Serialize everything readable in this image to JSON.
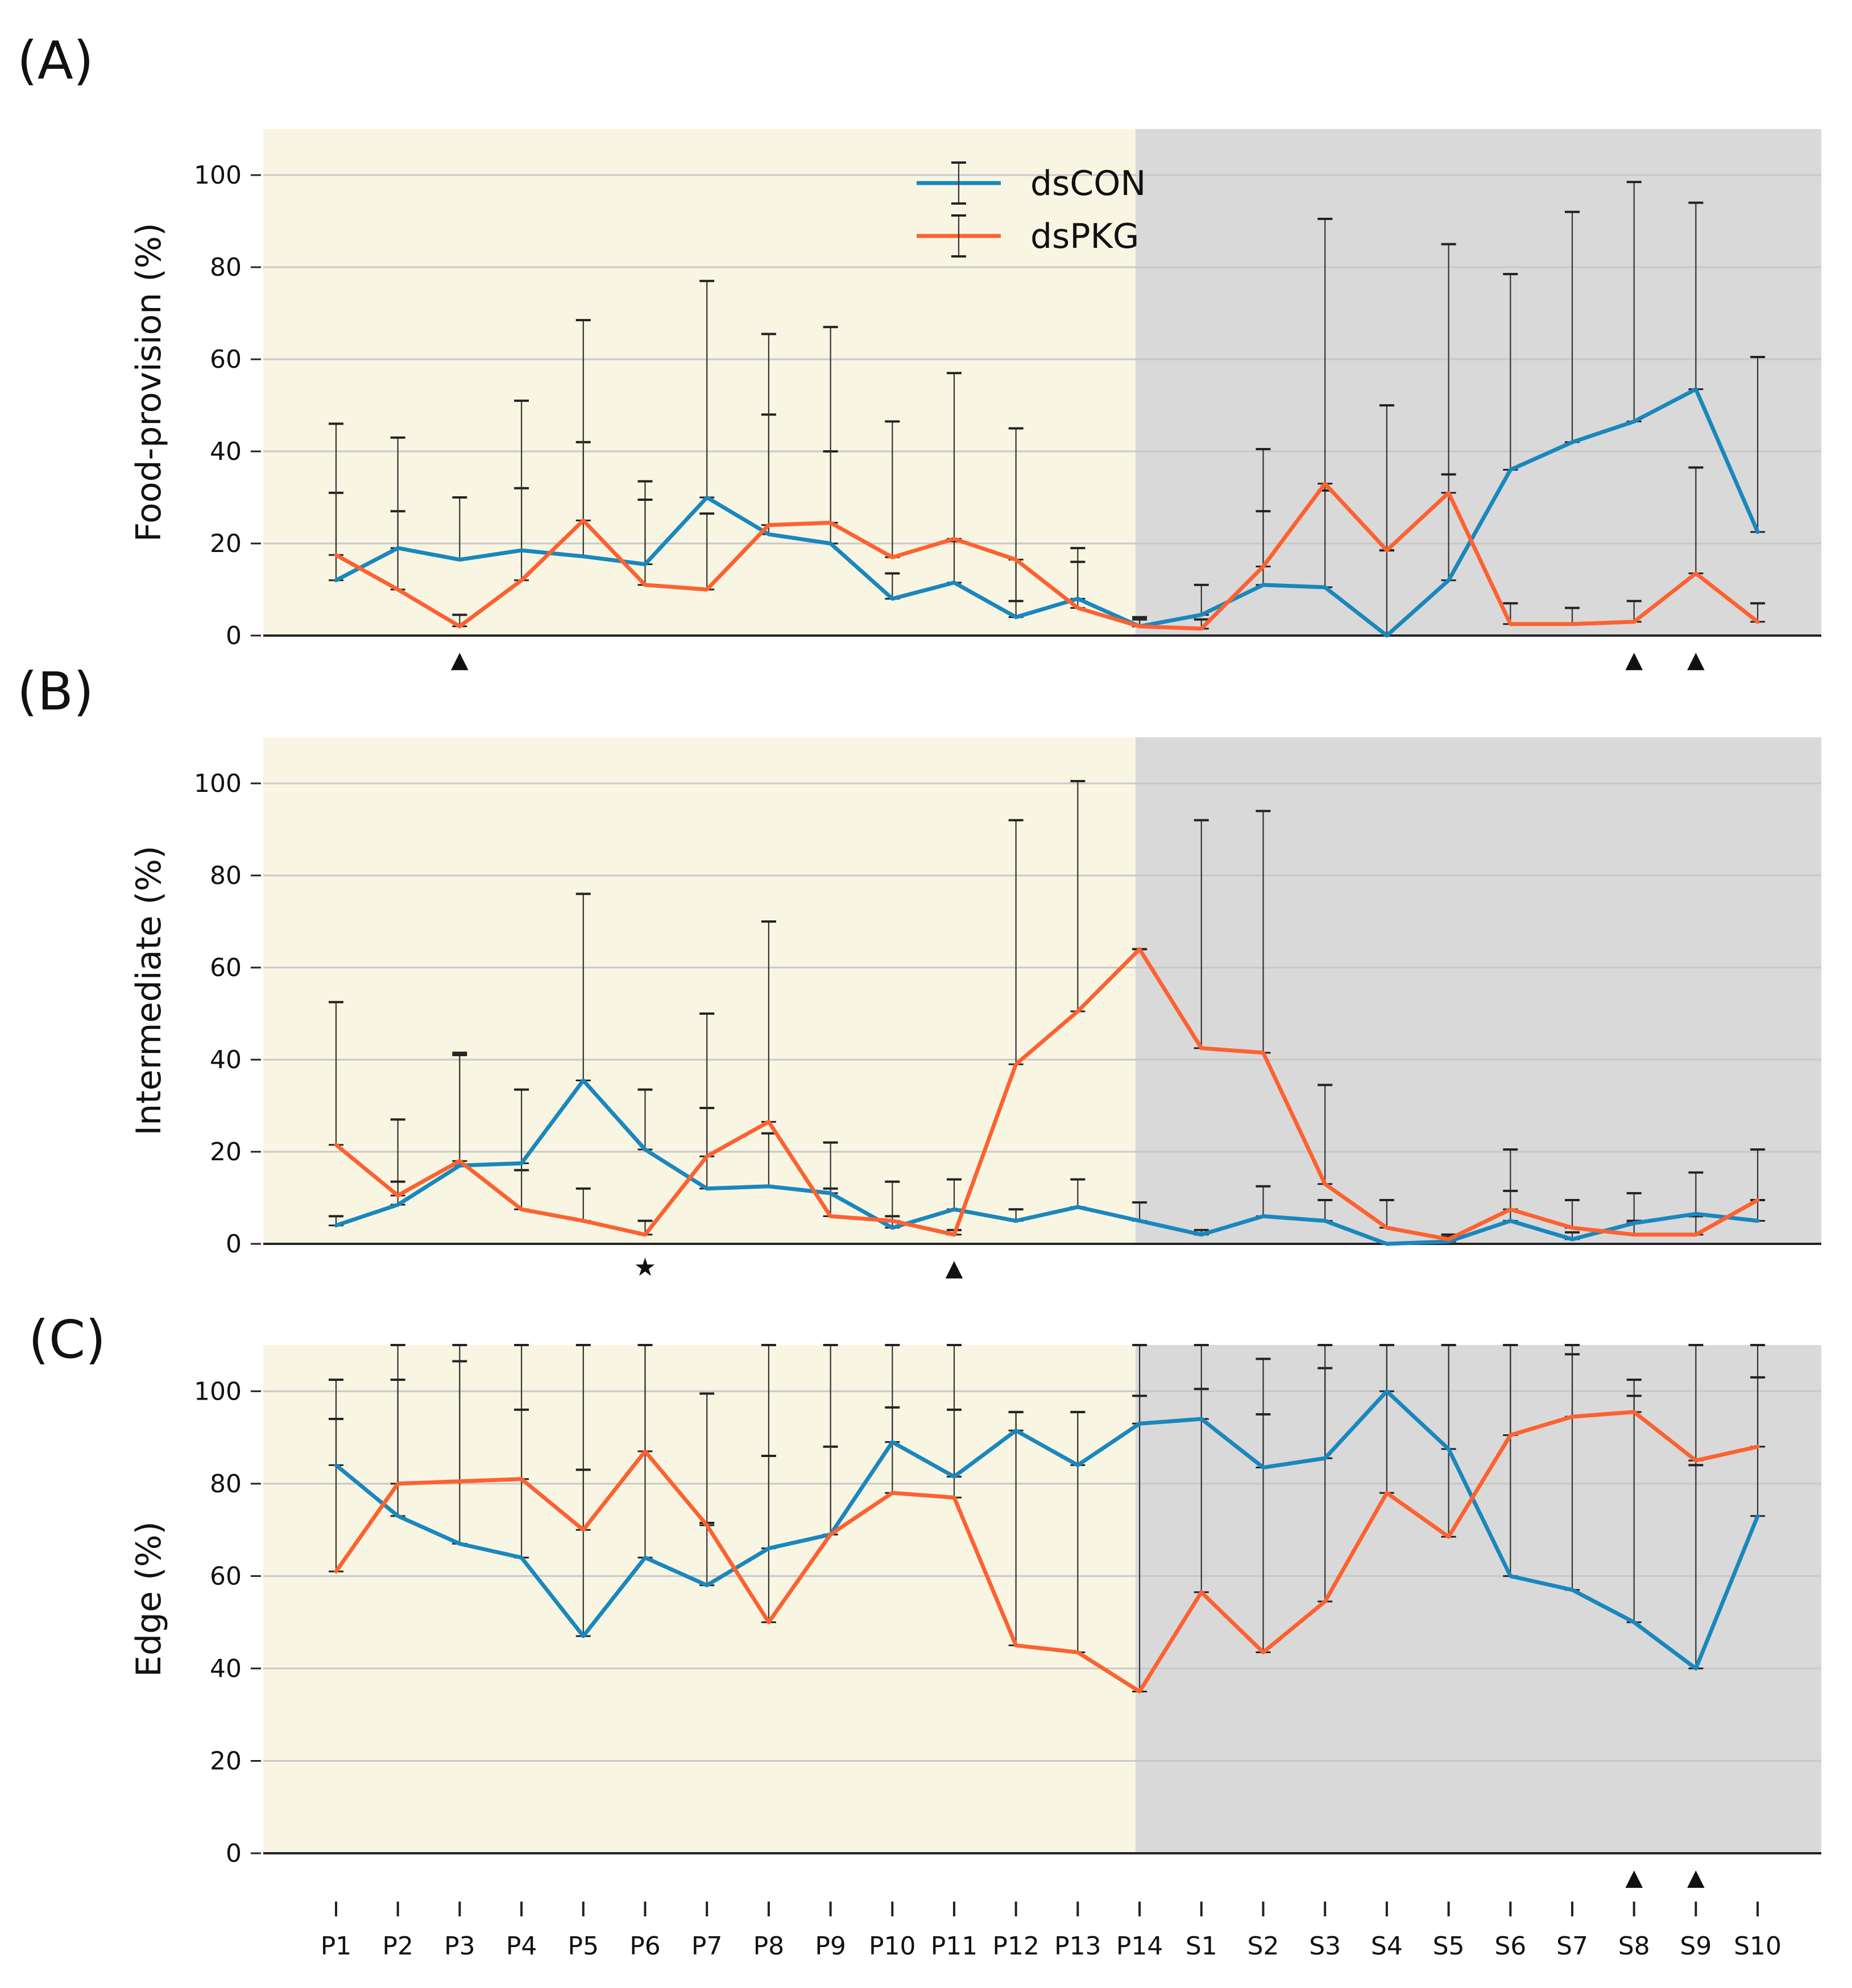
{
  "chart_data": {
    "type": "line",
    "colors": {
      "dsCON": "#1a87bd",
      "dsPKG": "#fc6231",
      "pre_bg": "#f8f6e3",
      "post_bg": "#d9d9d9",
      "grid": "#c8c8c8"
    },
    "categories": [
      "P1",
      "P2",
      "P3",
      "P4",
      "P5",
      "P6",
      "P7",
      "P8",
      "P9",
      "P10",
      "P11",
      "P12",
      "P13",
      "P14",
      "S1",
      "S2",
      "S3",
      "S4",
      "S5",
      "S6",
      "S7",
      "S8",
      "S9",
      "S10"
    ],
    "shade_split_after": "P14",
    "legend": {
      "position": "upper-center",
      "entries": [
        "dsCON",
        "dsPKG"
      ]
    },
    "panels": [
      {
        "label": "(A)",
        "ylabel": "Food-provision (%)",
        "ylim": [
          0,
          110
        ],
        "yticks": [
          0,
          20,
          40,
          60,
          80,
          100
        ],
        "yticklabels": [
          "0",
          "20",
          "40",
          "60",
          "80",
          "100"
        ],
        "show_xticks": false,
        "series": [
          {
            "name": "dsCON",
            "values": [
              12,
              19,
              16.5,
              18.5,
              17.2,
              15.5,
              30,
              22,
              20,
              8,
              11.5,
              4,
              8,
              2,
              4.5,
              11,
              10.5,
              0,
              12,
              36,
              42,
              46.5,
              53.5,
              22.5
            ],
            "err_upper": [
              31,
              27,
              30,
              32,
              42,
              29.5,
              77,
              48,
              40,
              13.5,
              57,
              45,
              19,
              4,
              11,
              40.5,
              90.5,
              50,
              85,
              78.5,
              92,
              98.5,
              94,
              60.5
            ]
          },
          {
            "name": "dsPKG",
            "values": [
              17.5,
              10,
              2,
              12,
              25,
              11,
              10,
              24,
              24.5,
              17,
              21,
              16.5,
              6,
              2,
              1.5,
              15,
              33,
              18.5,
              31,
              2.5,
              2.5,
              3,
              13.5,
              3
            ],
            "err_upper": [
              46,
              43,
              4.5,
              51,
              68.5,
              33.5,
              26.5,
              65.5,
              67,
              46.5,
              20.5,
              7.5,
              16,
              3.5,
              3.5,
              27,
              31.5,
              18.5,
              35,
              7,
              6,
              7.5,
              36.5,
              7
            ]
          }
        ],
        "markers": [
          {
            "category": "P3",
            "symbol": "▲"
          },
          {
            "category": "S8",
            "symbol": "▲"
          },
          {
            "category": "S9",
            "symbol": "▲"
          }
        ]
      },
      {
        "label": "(B)",
        "ylabel": "Intermediate (%)",
        "ylim": [
          0,
          110
        ],
        "yticks": [
          0,
          20,
          40,
          60,
          80,
          100
        ],
        "yticklabels": [
          "0",
          "20",
          "40",
          "60",
          "80",
          "100"
        ],
        "show_xticks": false,
        "series": [
          {
            "name": "dsCON",
            "values": [
              4,
              8.5,
              17,
              17.5,
              35.5,
              20.5,
              12,
              12.5,
              11,
              3.5,
              7.5,
              5,
              8,
              5,
              2,
              6,
              5,
              0,
              0.5,
              5,
              1,
              4.5,
              6.5,
              5
            ],
            "err_upper": [
              6,
              27,
              41.5,
              16,
              76,
              33.5,
              29.5,
              24,
              12,
              6,
              14,
              7.5,
              14,
              9,
              3,
              12.5,
              9.5,
              0,
              1.5,
              11.5,
              2.5,
              11,
              15.5,
              20.5
            ]
          },
          {
            "name": "dsPKG",
            "values": [
              21.5,
              10.5,
              18,
              7.5,
              5,
              2,
              19,
              26.5,
              6,
              5,
              2,
              39,
              50.5,
              64,
              42.5,
              41.5,
              13,
              3.5,
              1,
              7.5,
              3.5,
              2,
              2,
              9.5
            ],
            "err_upper": [
              52.5,
              13.5,
              41,
              33.5,
              12,
              5,
              50,
              70,
              22,
              13.5,
              3,
              92,
              100.5,
              64,
              92,
              94,
              34.5,
              9.5,
              2,
              20.5,
              9.5,
              5,
              6,
              9.5
            ]
          }
        ],
        "markers": [
          {
            "category": "P6",
            "symbol": "★"
          },
          {
            "category": "P11",
            "symbol": "▲"
          }
        ]
      },
      {
        "label": "(C)",
        "ylabel": "Edge (%)",
        "ylim": [
          0,
          110
        ],
        "yticks": [
          0,
          20,
          40,
          60,
          80,
          100
        ],
        "yticklabels": [
          "0",
          "20",
          "40",
          "60",
          "80",
          "100"
        ],
        "show_xticks": true,
        "series": [
          {
            "name": "dsCON",
            "values": [
              84,
              73,
              67,
              64,
              47,
              64,
              58,
              66,
              69,
              89,
              81.5,
              91.5,
              84,
              93,
              94,
              83.5,
              85.5,
              100,
              87.5,
              60,
              57,
              50,
              40,
              73
            ],
            "err_upper": [
              102.5,
              110,
              110,
              110,
              110,
              110,
              71.5,
              110,
              88,
              110,
              110,
              95.5,
              95.5,
              110,
              110,
              107,
              105,
              110,
              110,
              110,
              110,
              102.5,
              110,
              110
            ]
          },
          {
            "name": "dsPKG",
            "values": [
              61,
              80,
              80.5,
              81,
              70,
              87,
              71,
              50,
              69,
              78,
              77,
              45,
              43.5,
              35,
              56.5,
              43.5,
              54.5,
              78,
              68.5,
              90.5,
              94.5,
              95.5,
              85,
              88
            ],
            "err_upper": [
              94,
              102.5,
              106.5,
              96,
              83,
              110,
              99.5,
              86,
              110,
              96.5,
              96,
              95.5,
              95.5,
              99,
              100.5,
              95,
              110,
              110,
              110,
              110,
              108,
              99,
              84,
              103
            ]
          }
        ],
        "markers": [
          {
            "category": "S8",
            "symbol": "▲"
          },
          {
            "category": "S9",
            "symbol": "▲"
          }
        ]
      }
    ]
  }
}
